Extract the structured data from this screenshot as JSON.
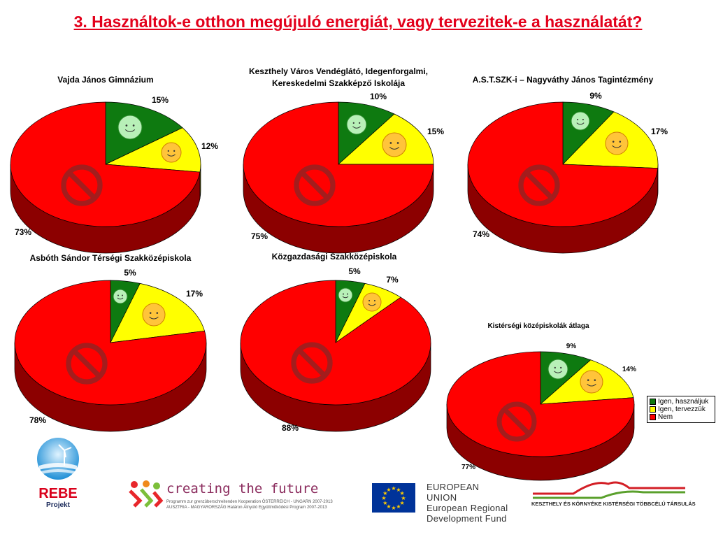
{
  "title": "3. Használtok-e otthon megújuló energiát, vagy tervezitek-e a használatát?",
  "colors": {
    "igen_hasznaljuk": "#0e7a10",
    "igen_tervezzuk": "#ffff00",
    "nem": "#ff0000",
    "title": "#e3001b"
  },
  "legend": {
    "items": [
      {
        "label": "Igen, használjuk",
        "color": "#0e7a10"
      },
      {
        "label": "Igen, tervezzük",
        "color": "#ffff00"
      },
      {
        "label": "Nem",
        "color": "#ff0000"
      }
    ]
  },
  "icons": [
    "smiley-green-icon",
    "smiley-orange-icon",
    "prohibition-icon"
  ],
  "chart_data": [
    {
      "type": "pie",
      "title": [
        "Vajda János Gimnázium"
      ],
      "categories": [
        "Igen, használjuk",
        "Igen, tervezzük",
        "Nem"
      ],
      "values": [
        15,
        12,
        73
      ],
      "labels": [
        "15%",
        "12%",
        "73%"
      ]
    },
    {
      "type": "pie",
      "title": [
        "Keszthely Város Vendéglátó, Idegenforgalmi,",
        "Kereskedelmi Szakképző Iskolája"
      ],
      "categories": [
        "Igen, használjuk",
        "Igen, tervezzük",
        "Nem"
      ],
      "values": [
        10,
        15,
        75
      ],
      "labels": [
        "10%",
        "15%",
        "75%"
      ]
    },
    {
      "type": "pie",
      "title": [
        "A.S.T.SZK-i – Nagyváthy János Tagintézmény"
      ],
      "categories": [
        "Igen, használjuk",
        "Igen, tervezzük",
        "Nem"
      ],
      "values": [
        9,
        17,
        74
      ],
      "labels": [
        "9%",
        "17%",
        "74%"
      ]
    },
    {
      "type": "pie",
      "title": [
        "Asbóth Sándor Térségi Szakközépiskola"
      ],
      "categories": [
        "Igen, használjuk",
        "Igen, tervezzük",
        "Nem"
      ],
      "values": [
        5,
        17,
        78
      ],
      "labels": [
        "5%",
        "17%",
        "78%"
      ]
    },
    {
      "type": "pie",
      "title": [
        "Közgazdasági Szakközépiskola"
      ],
      "categories": [
        "Igen, használjuk",
        "Igen, tervezzük",
        "Nem"
      ],
      "values": [
        5,
        7,
        88
      ],
      "labels": [
        "5%",
        "7%",
        "88%"
      ]
    },
    {
      "type": "pie",
      "title": [
        "Kistérségi középiskolák átlaga"
      ],
      "categories": [
        "Igen, használjuk",
        "Igen, tervezzük",
        "Nem"
      ],
      "values": [
        9,
        14,
        77
      ],
      "labels": [
        "9%",
        "14%",
        "77%"
      ]
    }
  ],
  "logos": {
    "rebe": {
      "name": "REBE",
      "sub": "Projekt"
    },
    "creating_future": {
      "main": "creating the future",
      "line1": "Programm zur grenzüberschreitenden Kooperation ÖSTERREICH - UNGARN 2007-2013",
      "line2": "AUSZTRIA - MAGYARORSZÁG Határon Átnyúló Együttműködési Program 2007-2013"
    },
    "eu": {
      "line1": "EUROPEAN UNION",
      "line2": "European Regional",
      "line3": "Development Fund"
    },
    "keszthely": {
      "name": "KESZTHELY ÉS KÖRNYÉKE KISTÉRSÉGI TÖBBCÉLÚ TÁRSULÁS"
    }
  }
}
